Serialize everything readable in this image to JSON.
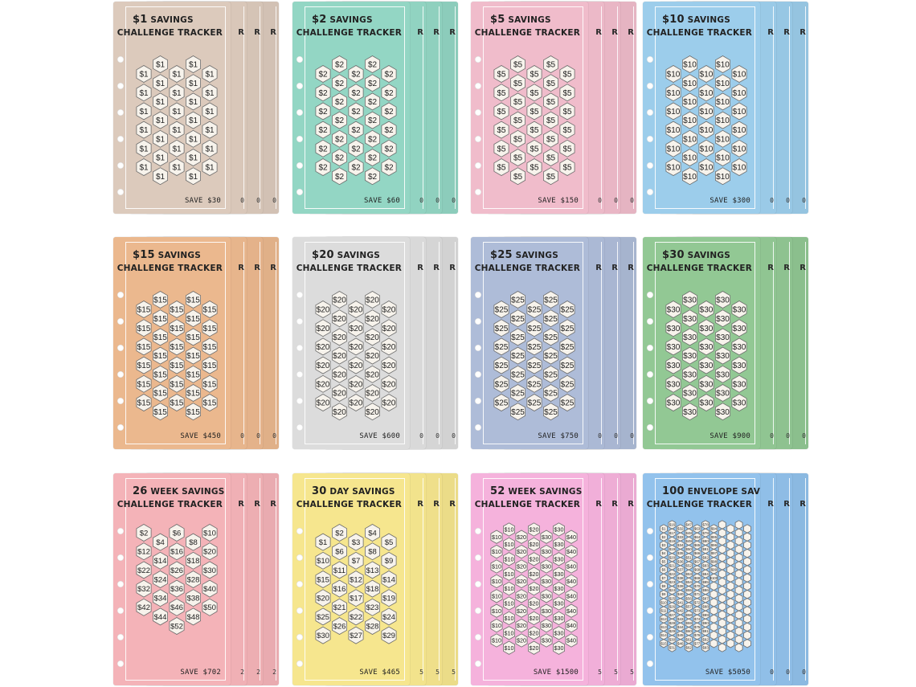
{
  "cards": [
    {
      "id": "c1",
      "color": "#dccabc",
      "title_amount": "$1",
      "title_word": "SAVINGS",
      "subtitle": "CHALLENGE TRACKER",
      "save": "SAVE $30",
      "edge": "R",
      "edge_save": "0",
      "kind": "uniform",
      "value": "$1"
    },
    {
      "id": "c2",
      "color": "#93d6c4",
      "title_amount": "$2",
      "title_word": "SAVINGS",
      "subtitle": "CHALLENGE TRACKER",
      "save": "SAVE $60",
      "edge": "R",
      "edge_save": "0",
      "kind": "uniform",
      "value": "$2"
    },
    {
      "id": "c5",
      "color": "#f0bccb",
      "title_amount": "$5",
      "title_word": "SAVINGS",
      "subtitle": "CHALLENGE TRACKER",
      "save": "SAVE $150",
      "edge": "R",
      "edge_save": "0",
      "kind": "uniform",
      "value": "$5"
    },
    {
      "id": "c10",
      "color": "#9ccdeb",
      "title_amount": "$10",
      "title_word": "SAVINGS",
      "subtitle": "CHALLENGE TRACKER",
      "save": "SAVE $300",
      "edge": "R",
      "edge_save": "0",
      "kind": "uniform",
      "value": "$10"
    },
    {
      "id": "c15",
      "color": "#ebb88e",
      "title_amount": "$15",
      "title_word": "SAVINGS",
      "subtitle": "CHALLENGE TRACKER",
      "save": "SAVE $450",
      "edge": "R",
      "edge_save": "0",
      "kind": "uniform",
      "value": "$15"
    },
    {
      "id": "c20",
      "color": "#dcdcdc",
      "title_amount": "$20",
      "title_word": "SAVINGS",
      "subtitle": "CHALLENGE TRACKER",
      "save": "SAVE $600",
      "edge": "R",
      "edge_save": "0",
      "kind": "uniform",
      "value": "$20"
    },
    {
      "id": "c25",
      "color": "#aebcd8",
      "title_amount": "$25",
      "title_word": "SAVINGS",
      "subtitle": "CHALLENGE TRACKER",
      "save": "SAVE $750",
      "edge": "R",
      "edge_save": "0",
      "kind": "uniform",
      "value": "$25"
    },
    {
      "id": "c30",
      "color": "#92c894",
      "title_amount": "$30",
      "title_word": "SAVINGS",
      "subtitle": "CHALLENGE TRACKER",
      "save": "SAVE $900",
      "edge": "R",
      "edge_save": "0",
      "kind": "uniform",
      "value": "$30"
    },
    {
      "id": "w26",
      "color": "#f4b3b8",
      "title_amount": "26",
      "title_word": "WEEK SAVINGS",
      "subtitle": "CHALLENGE TRACKER",
      "save": "SAVE $702",
      "edge": "R",
      "edge_save": "2",
      "kind": "list",
      "rows": [
        [
          "$2",
          "$6",
          "$10"
        ],
        [
          "$4",
          "$8"
        ],
        [
          "$12",
          "$16",
          "$20"
        ],
        [
          "$14",
          "$18"
        ],
        [
          "$22",
          "$26",
          "$30"
        ],
        [
          "$24",
          "$28"
        ],
        [
          "$32",
          "$36",
          "$40"
        ],
        [
          "$34",
          "$38"
        ],
        [
          "$42",
          "$46",
          "$50"
        ],
        [
          "$44",
          "$48"
        ],
        [
          "$52"
        ]
      ]
    },
    {
      "id": "d30",
      "color": "#f6e68e",
      "title_amount": "30",
      "title_word": "DAY SAVINGS",
      "subtitle": "CHALLENGE TRACKER",
      "save": "SAVE $465",
      "edge": "R",
      "edge_save": "5",
      "kind": "list",
      "rows": [
        [
          "$2",
          "$4"
        ],
        [
          "$1",
          "$3",
          "$5"
        ],
        [
          "$6",
          "$8"
        ],
        [
          "$10",
          "$7",
          "$9"
        ],
        [
          "$11",
          "$13"
        ],
        [
          "$15",
          "$12",
          "$14"
        ],
        [
          "$16",
          "$18"
        ],
        [
          "$20",
          "$17",
          "$19"
        ],
        [
          "$21",
          "$23"
        ],
        [
          "$25",
          "$22",
          "$24"
        ],
        [
          "$26",
          "$28"
        ],
        [
          "$30",
          "$27",
          "$29"
        ]
      ]
    },
    {
      "id": "w52",
      "color": "#f5b2dc",
      "title_amount": "52",
      "title_word": "WEEK SAVINGS",
      "subtitle": "CHALLENGE TRACKER",
      "save": "SAVE $1500",
      "edge": "R",
      "edge_save": "5",
      "kind": "dense",
      "values": [
        "$10",
        "$20",
        "$30",
        "$40"
      ]
    },
    {
      "id": "e100",
      "color": "#92c2ec",
      "title_amount": "100",
      "title_word": "ENVELOPE SAVINGS",
      "subtitle": "CHALLENGE TRACKER",
      "save": "SAVE $5050",
      "edge": "R",
      "edge_save": "0",
      "kind": "tiny"
    }
  ]
}
